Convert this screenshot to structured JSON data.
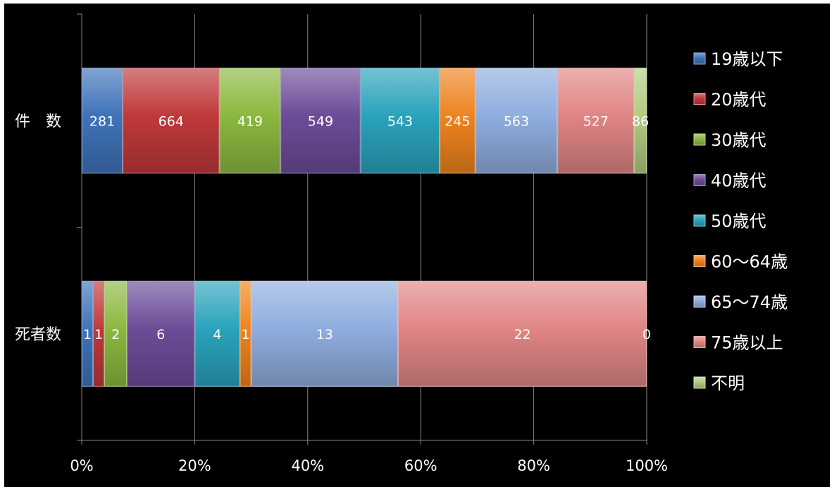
{
  "chart_data": {
    "type": "bar",
    "orientation": "horizontal",
    "stacked": "percent",
    "categories": [
      "件　数",
      "死者数"
    ],
    "xlim": [
      0,
      100
    ],
    "x_tick_labels": [
      "0%",
      "20%",
      "40%",
      "60%",
      "80%",
      "100%"
    ],
    "grid": true,
    "legend_position": "right",
    "series": [
      {
        "name": "19歳以下",
        "values": [
          281,
          1
        ],
        "color": "#3f73b8"
      },
      {
        "name": "20歳代",
        "values": [
          664,
          1
        ],
        "color": "#c0393a"
      },
      {
        "name": "30歳代",
        "values": [
          419,
          2
        ],
        "color": "#8cb840"
      },
      {
        "name": "40歳代",
        "values": [
          549,
          6
        ],
        "color": "#6c4c98"
      },
      {
        "name": "50歳代",
        "values": [
          543,
          4
        ],
        "color": "#2aa3bc"
      },
      {
        "name": "60〜64歳",
        "values": [
          245,
          1
        ],
        "color": "#ee8420"
      },
      {
        "name": "65〜74歳",
        "values": [
          563,
          13
        ],
        "color": "#8fadde"
      },
      {
        "name": "75歳以上",
        "values": [
          527,
          22
        ],
        "color": "#e08585"
      },
      {
        "name": "不明",
        "values": [
          86,
          0
        ],
        "color": "#b2cc80"
      }
    ]
  }
}
